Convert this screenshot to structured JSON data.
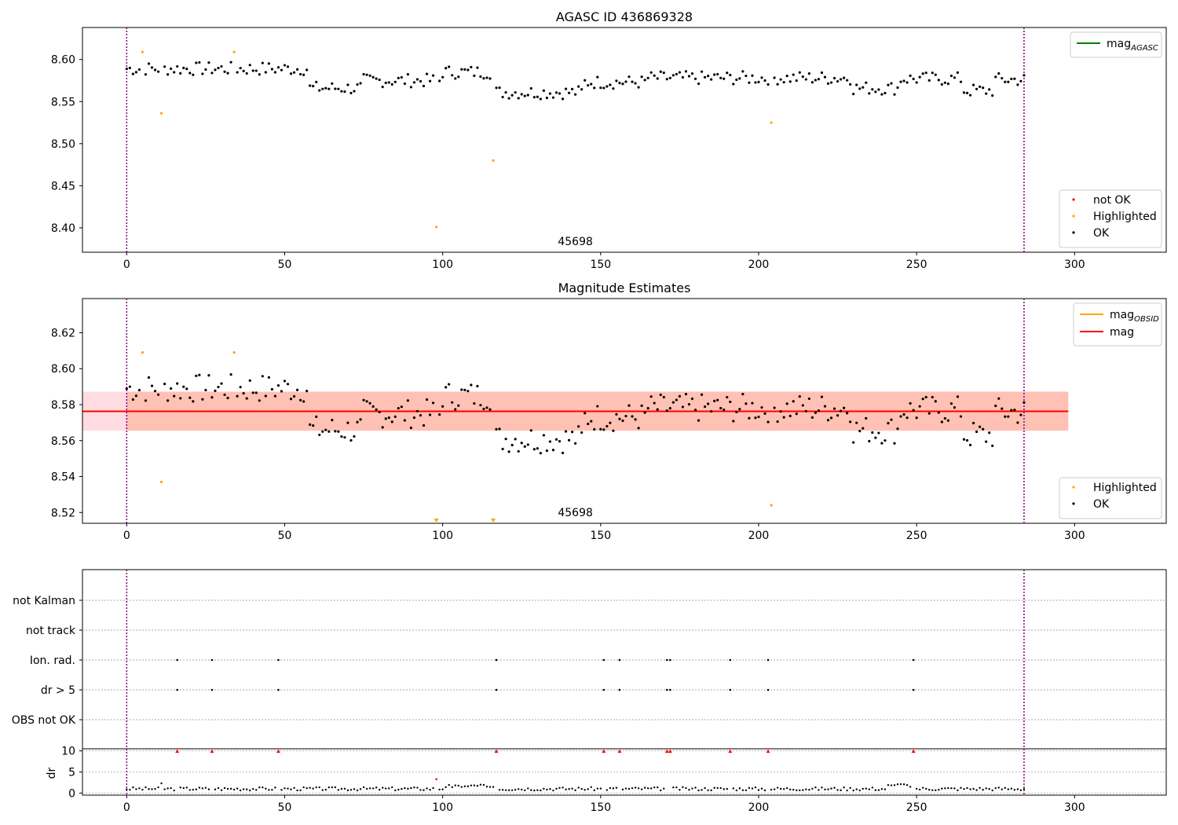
{
  "chart_data": [
    {
      "type": "scatter",
      "title": "AGASC ID 436869328",
      "obsid_label": "45698",
      "xlim": [
        -14,
        329
      ],
      "ylim": [
        8.371,
        8.638
      ],
      "x_ticks": [
        0,
        50,
        100,
        150,
        200,
        250,
        300
      ],
      "y_ticks": [
        8.4,
        8.45,
        8.5,
        8.55,
        8.6
      ],
      "y_tick_labels": [
        "8.40",
        "8.45",
        "8.50",
        "8.55",
        "8.60"
      ],
      "vlines": [
        0,
        284
      ],
      "legend_upper": [
        {
          "name": "mag",
          "sub": "AGASC",
          "color": "#008000"
        }
      ],
      "legend_lower": [
        {
          "name": "not OK",
          "color": "#ff0000"
        },
        {
          "name": "Highlighted",
          "color": "#ffa500"
        },
        {
          "name": "OK",
          "color": "#000000"
        }
      ],
      "highlighted_points": [
        [
          5,
          8.609
        ],
        [
          11,
          8.536
        ],
        [
          34,
          8.609
        ],
        [
          98,
          8.401
        ],
        [
          116,
          8.48
        ],
        [
          204,
          8.525
        ]
      ]
    },
    {
      "type": "scatter",
      "title": "Magnitude Estimates",
      "obsid_label": "45698",
      "xlim": [
        -14,
        329
      ],
      "ylim": [
        8.514,
        8.639
      ],
      "x_ticks": [
        0,
        50,
        100,
        150,
        200,
        250,
        300
      ],
      "y_ticks": [
        8.52,
        8.54,
        8.56,
        8.58,
        8.6,
        8.62
      ],
      "y_tick_labels": [
        "8.52",
        "8.54",
        "8.56",
        "8.58",
        "8.60",
        "8.62"
      ],
      "vlines": [
        0,
        284
      ],
      "mag_line": 8.5763,
      "mag_band": [
        8.5655,
        8.5872
      ],
      "obsid_band_x": [
        0,
        298
      ],
      "legend_upper": [
        {
          "name": "mag",
          "sub": "OBSID",
          "color": "#ffa500"
        },
        {
          "name": "mag",
          "sub": "",
          "color": "#ff0000"
        }
      ],
      "legend_lower": [
        {
          "name": "Highlighted",
          "color": "#ffa500"
        },
        {
          "name": "OK",
          "color": "#000000"
        }
      ],
      "highlighted_points": [
        [
          5,
          8.609
        ],
        [
          11,
          8.537
        ],
        [
          34,
          8.609
        ],
        [
          204,
          8.524
        ]
      ],
      "offscale_markers": [
        98,
        116
      ]
    },
    {
      "type": "scatter",
      "title": "",
      "xlim": [
        -14,
        329
      ],
      "categories": [
        "not Kalman",
        "not track",
        "Ion. rad.",
        "dr > 5",
        "OBS not OK"
      ],
      "flagged_x": [
        16,
        27,
        48,
        117,
        151,
        156,
        171,
        172,
        191,
        203,
        249
      ],
      "flag_rows": [
        "Ion. rad.",
        "dr > 5"
      ],
      "vlines": [
        0,
        284
      ]
    },
    {
      "type": "scatter",
      "title": "",
      "ylabel": "dr",
      "xlim": [
        -14,
        329
      ],
      "ylim": [
        -0.5,
        10.5
      ],
      "x_ticks": [
        0,
        50,
        100,
        150,
        200,
        250,
        300
      ],
      "y_ticks": [
        0,
        5,
        10
      ],
      "y_tick_labels": [
        "0",
        "5",
        "10"
      ],
      "vlines": [
        0,
        284
      ],
      "capped_x": [
        16,
        27,
        48,
        117,
        151,
        156,
        171,
        172,
        191,
        203,
        249
      ],
      "highlight_point": [
        98,
        3.3
      ]
    }
  ]
}
